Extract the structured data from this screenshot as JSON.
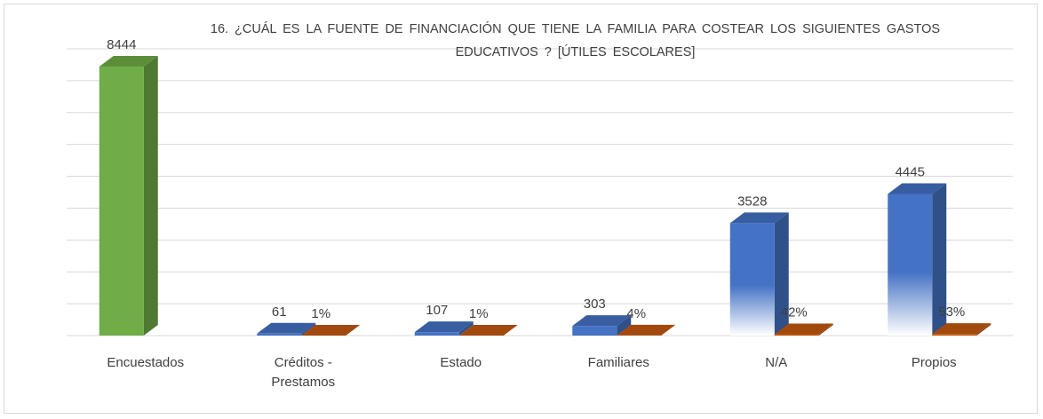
{
  "chart_data": {
    "type": "bar3d",
    "title": "16. ¿CUÁL ES LA FUENTE DE FINANCIACIÓN QUE TIENE LA FAMILIA PARA COSTEAR LOS SIGUIENTES GASTOS EDUCATIVOS ? [ÚTILES ESCOLARES]",
    "categories": [
      "Encuestados",
      "Créditos - Prestamos",
      "Estado",
      "Familiares",
      "N/A",
      "Propios"
    ],
    "series": [
      {
        "colors": [
          "#70ad47",
          "#4472c4",
          "#4472c4",
          "#4472c4",
          "#4472c4",
          "#4472c4"
        ],
        "values": [
          8444,
          61,
          107,
          303,
          3528,
          4445
        ]
      },
      {
        "color": "#c55a11",
        "values": [
          null,
          1,
          1,
          4,
          42,
          53
        ],
        "value_labels": [
          null,
          "1%",
          "1%",
          "4%",
          "42%",
          "53%"
        ]
      }
    ],
    "ylim": [
      0,
      9000
    ],
    "yticks": [
      0,
      1000,
      2000,
      3000,
      4000,
      5000,
      6000,
      7000,
      8000,
      9000
    ],
    "grid": true
  }
}
